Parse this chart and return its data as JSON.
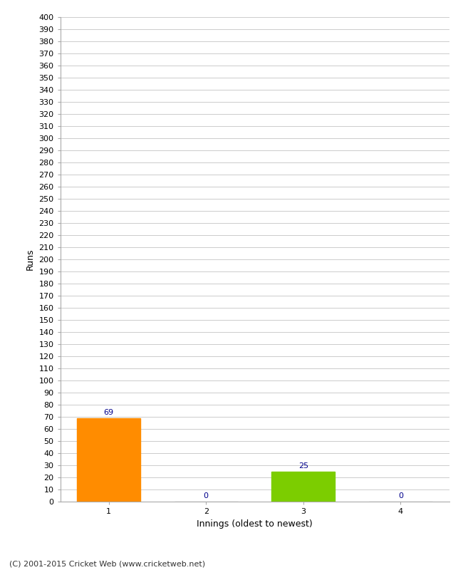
{
  "categories": [
    1,
    2,
    3,
    4
  ],
  "values": [
    69,
    0,
    25,
    0
  ],
  "bar_colors_actual": [
    "#ff8c00",
    "#cccccc",
    "#7ccd00",
    "#cccccc"
  ],
  "label_color": "#00008b",
  "xlabel": "Innings (oldest to newest)",
  "ylabel": "Runs",
  "ylim_max": 400,
  "background_color": "#ffffff",
  "grid_color": "#cccccc",
  "footer": "(C) 2001-2015 Cricket Web (www.cricketweb.net)",
  "bar_width": 0.65,
  "tick_fontsize": 8,
  "label_fontsize": 9,
  "footer_fontsize": 8
}
